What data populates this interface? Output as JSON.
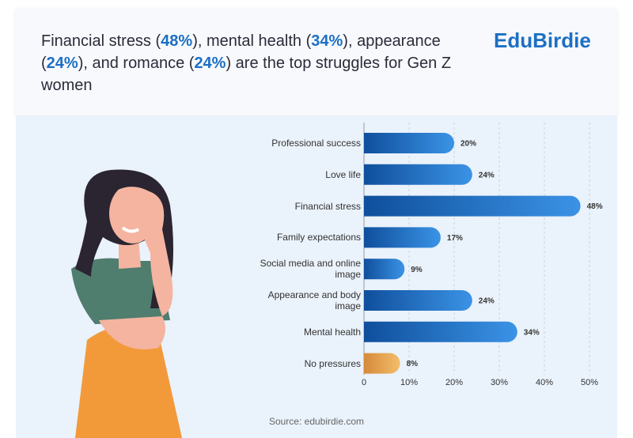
{
  "header": {
    "title_parts": [
      "Financial stress (",
      "48%",
      "), mental health (",
      "34%",
      "), appearance (",
      "24%",
      "), and romance (",
      "24%",
      ") are the top struggles for Gen Z women"
    ],
    "brand": "EduBirdie"
  },
  "chart_data": {
    "type": "hbar",
    "categories": [
      "Professional success",
      "Love life",
      "Financial stress",
      "Family expectations",
      "Social media and online image",
      "Appearance and body image",
      "Mental health",
      "No pressures"
    ],
    "values": [
      20,
      24,
      48,
      17,
      9,
      24,
      34,
      8
    ],
    "value_labels": [
      "20%",
      "24%",
      "48%",
      "17%",
      "9%",
      "24%",
      "34%",
      "8%"
    ],
    "colors": [
      "#1f6cc0",
      "#1f6cc0",
      "#1f6cc0",
      "#1f6cc0",
      "#1f6cc0",
      "#1f6cc0",
      "#1f6cc0",
      "#e6a04e"
    ],
    "xlim": [
      0,
      50
    ],
    "xticks": [
      0,
      {
        "value": 10,
        "label": "10%"
      },
      {
        "value": 20,
        "label": "20%"
      },
      {
        "value": 30,
        "label": "30%"
      },
      {
        "value": 40,
        "label": "40%"
      },
      {
        "value": 50,
        "label": "50%"
      }
    ],
    "grid": true
  },
  "footer": {
    "source": "Source: edubirdie.com"
  }
}
